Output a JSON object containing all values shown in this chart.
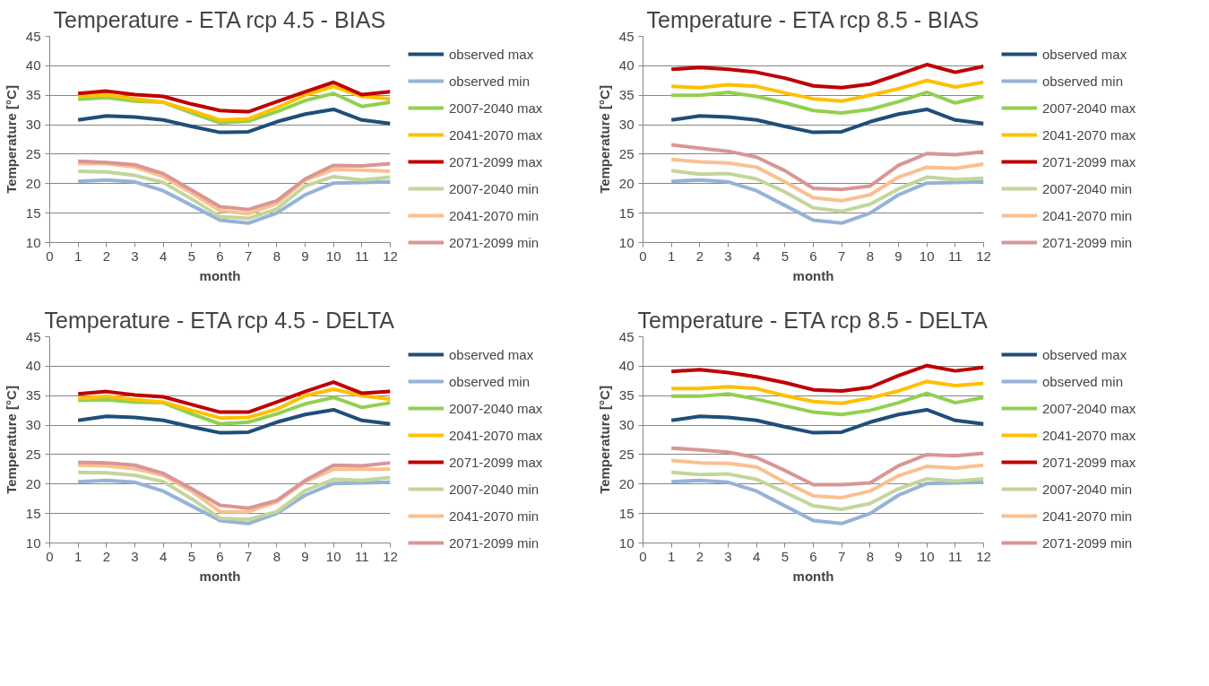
{
  "chart_data": [
    {
      "type": "line",
      "title": "Temperature - ETA rcp 4.5 - BIAS",
      "xlabel": "month",
      "ylabel": "Temperature [°C]",
      "x": [
        1,
        2,
        3,
        4,
        5,
        6,
        7,
        8,
        9,
        10,
        11,
        12
      ],
      "xlim": [
        0,
        12
      ],
      "xticks": [
        0,
        1,
        2,
        3,
        4,
        5,
        6,
        7,
        8,
        9,
        10,
        11,
        12
      ],
      "ylim": [
        10,
        45
      ],
      "yticks": [
        10,
        15,
        20,
        25,
        30,
        35,
        40,
        45
      ],
      "grid": "y",
      "legend": "right",
      "marker": "none",
      "line_style": "solid",
      "series": [
        {
          "name": "observed max",
          "color": "#1f4e79",
          "values": [
            30.8,
            31.5,
            31.3,
            30.8,
            29.7,
            28.7,
            28.8,
            30.5,
            31.8,
            32.6,
            30.8,
            30.2
          ]
        },
        {
          "name": "observed min",
          "color": "#95b3d7",
          "values": [
            20.4,
            20.6,
            20.3,
            18.8,
            16.3,
            13.8,
            13.3,
            15.0,
            18.1,
            20.1,
            20.2,
            20.3
          ]
        },
        {
          "name": "2007-2040 max",
          "color": "#92d050",
          "values": [
            34.3,
            34.6,
            34.0,
            33.8,
            32.0,
            30.3,
            30.6,
            32.2,
            34.1,
            35.3,
            33.1,
            33.8
          ]
        },
        {
          "name": "2041-2070 max",
          "color": "#ffc000",
          "values": [
            34.8,
            35.1,
            34.4,
            33.8,
            32.4,
            30.8,
            31.0,
            32.9,
            35.0,
            36.5,
            34.8,
            34.4
          ]
        },
        {
          "name": "2071-2099 max",
          "color": "#c00000",
          "values": [
            35.3,
            35.7,
            35.1,
            34.8,
            33.5,
            32.4,
            32.2,
            33.9,
            35.6,
            37.2,
            35.1,
            35.6
          ]
        },
        {
          "name": "2007-2040 min",
          "color": "#c3d69b",
          "values": [
            22.1,
            22.0,
            21.4,
            20.2,
            17.4,
            14.4,
            14.1,
            15.7,
            19.6,
            21.2,
            20.6,
            21.1
          ]
        },
        {
          "name": "2041-2070 min",
          "color": "#fac090",
          "values": [
            23.4,
            23.4,
            22.8,
            21.2,
            18.4,
            15.4,
            14.9,
            16.6,
            20.6,
            22.4,
            22.3,
            22.1
          ]
        },
        {
          "name": "2071-2099 min",
          "color": "#d99694",
          "values": [
            23.8,
            23.6,
            23.2,
            21.7,
            18.9,
            16.1,
            15.6,
            17.1,
            20.8,
            23.1,
            23.0,
            23.4
          ]
        }
      ]
    },
    {
      "type": "line",
      "title": "Temperature - ETA rcp 8.5 - BIAS",
      "xlabel": "month",
      "ylabel": "Temperature [°C]",
      "x": [
        1,
        2,
        3,
        4,
        5,
        6,
        7,
        8,
        9,
        10,
        11,
        12
      ],
      "xlim": [
        0,
        12
      ],
      "xticks": [
        0,
        1,
        2,
        3,
        4,
        5,
        6,
        7,
        8,
        9,
        10,
        11,
        12
      ],
      "ylim": [
        10,
        45
      ],
      "yticks": [
        10,
        15,
        20,
        25,
        30,
        35,
        40,
        45
      ],
      "grid": "y",
      "legend": "right",
      "marker": "none",
      "line_style": "solid",
      "series": [
        {
          "name": "observed max",
          "color": "#1f4e79",
          "values": [
            30.8,
            31.5,
            31.3,
            30.8,
            29.7,
            28.7,
            28.8,
            30.5,
            31.8,
            32.6,
            30.8,
            30.2
          ]
        },
        {
          "name": "observed min",
          "color": "#95b3d7",
          "values": [
            20.4,
            20.6,
            20.3,
            18.8,
            16.3,
            13.8,
            13.3,
            15.0,
            18.1,
            20.1,
            20.2,
            20.3
          ]
        },
        {
          "name": "2007-2040 max",
          "color": "#92d050",
          "values": [
            35.0,
            35.0,
            35.5,
            34.8,
            33.7,
            32.4,
            32.0,
            32.6,
            33.9,
            35.5,
            33.7,
            34.8
          ]
        },
        {
          "name": "2041-2070 max",
          "color": "#ffc000",
          "values": [
            36.5,
            36.3,
            36.8,
            36.5,
            35.4,
            34.4,
            34.0,
            35.0,
            36.1,
            37.5,
            36.4,
            37.2
          ]
        },
        {
          "name": "2071-2099 max",
          "color": "#c00000",
          "values": [
            39.4,
            39.7,
            39.4,
            38.9,
            37.9,
            36.6,
            36.3,
            36.9,
            38.5,
            40.2,
            38.9,
            39.9
          ]
        },
        {
          "name": "2007-2040 min",
          "color": "#c3d69b",
          "values": [
            22.2,
            21.6,
            21.7,
            20.8,
            18.6,
            15.9,
            15.3,
            16.5,
            19.1,
            21.1,
            20.7,
            20.9
          ]
        },
        {
          "name": "2041-2070 min",
          "color": "#fac090",
          "values": [
            24.1,
            23.7,
            23.5,
            22.8,
            20.3,
            17.6,
            17.1,
            18.1,
            21.1,
            22.8,
            22.6,
            23.3
          ]
        },
        {
          "name": "2071-2099 min",
          "color": "#d99694",
          "values": [
            26.6,
            26.0,
            25.5,
            24.5,
            22.2,
            19.2,
            19.0,
            19.6,
            23.1,
            25.1,
            24.9,
            25.4
          ]
        }
      ]
    },
    {
      "type": "line",
      "title": "Temperature - ETA rcp 4.5 - DELTA",
      "xlabel": "month",
      "ylabel": "Temperature [°C]",
      "x": [
        1,
        2,
        3,
        4,
        5,
        6,
        7,
        8,
        9,
        10,
        11,
        12
      ],
      "xlim": [
        0,
        12
      ],
      "xticks": [
        0,
        1,
        2,
        3,
        4,
        5,
        6,
        7,
        8,
        9,
        10,
        11,
        12
      ],
      "ylim": [
        10,
        45
      ],
      "yticks": [
        10,
        15,
        20,
        25,
        30,
        35,
        40,
        45
      ],
      "grid": "y",
      "legend": "right",
      "marker": "none",
      "line_style": "solid",
      "series": [
        {
          "name": "observed max",
          "color": "#1f4e79",
          "values": [
            30.8,
            31.5,
            31.3,
            30.8,
            29.7,
            28.7,
            28.8,
            30.5,
            31.8,
            32.6,
            30.8,
            30.2
          ]
        },
        {
          "name": "observed min",
          "color": "#95b3d7",
          "values": [
            20.4,
            20.6,
            20.3,
            18.8,
            16.3,
            13.8,
            13.3,
            15.0,
            18.1,
            20.1,
            20.2,
            20.3
          ]
        },
        {
          "name": "2007-2040 max",
          "color": "#92d050",
          "values": [
            34.2,
            34.3,
            33.9,
            33.8,
            31.9,
            30.2,
            30.5,
            31.9,
            33.6,
            34.7,
            33.0,
            33.8
          ]
        },
        {
          "name": "2041-2070 max",
          "color": "#ffc000",
          "values": [
            34.5,
            34.9,
            34.3,
            33.9,
            32.5,
            31.2,
            31.3,
            32.7,
            35.0,
            36.1,
            35.0,
            34.4
          ]
        },
        {
          "name": "2071-2099 max",
          "color": "#c00000",
          "values": [
            35.3,
            35.7,
            35.1,
            34.8,
            33.5,
            32.2,
            32.2,
            33.9,
            35.7,
            37.3,
            35.4,
            35.7
          ]
        },
        {
          "name": "2007-2040 min",
          "color": "#c3d69b",
          "values": [
            22.0,
            21.9,
            21.5,
            20.4,
            17.5,
            14.2,
            14.0,
            15.3,
            18.9,
            20.8,
            20.6,
            21.1
          ]
        },
        {
          "name": "2041-2070 min",
          "color": "#fac090",
          "values": [
            23.2,
            23.1,
            22.6,
            21.5,
            18.8,
            15.3,
            15.3,
            17.0,
            20.4,
            22.5,
            22.5,
            22.5
          ]
        },
        {
          "name": "2071-2099 min",
          "color": "#d99694",
          "values": [
            23.7,
            23.6,
            23.2,
            21.8,
            19.2,
            16.4,
            15.9,
            17.2,
            20.6,
            23.2,
            23.1,
            23.6
          ]
        }
      ]
    },
    {
      "type": "line",
      "title": "Temperature - ETA rcp 8.5 - DELTA",
      "xlabel": "month",
      "ylabel": "Temperature [°C]",
      "x": [
        1,
        2,
        3,
        4,
        5,
        6,
        7,
        8,
        9,
        10,
        11,
        12
      ],
      "xlim": [
        0,
        12
      ],
      "xticks": [
        0,
        1,
        2,
        3,
        4,
        5,
        6,
        7,
        8,
        9,
        10,
        11,
        12
      ],
      "ylim": [
        10,
        45
      ],
      "yticks": [
        10,
        15,
        20,
        25,
        30,
        35,
        40,
        45
      ],
      "grid": "y",
      "legend": "right",
      "marker": "none",
      "line_style": "solid",
      "series": [
        {
          "name": "observed max",
          "color": "#1f4e79",
          "values": [
            30.8,
            31.5,
            31.3,
            30.8,
            29.7,
            28.7,
            28.8,
            30.5,
            31.8,
            32.6,
            30.8,
            30.2
          ]
        },
        {
          "name": "observed min",
          "color": "#95b3d7",
          "values": [
            20.4,
            20.6,
            20.3,
            18.8,
            16.3,
            13.8,
            13.3,
            15.0,
            18.1,
            20.1,
            20.2,
            20.3
          ]
        },
        {
          "name": "2007-2040 max",
          "color": "#92d050",
          "values": [
            34.9,
            34.9,
            35.3,
            34.4,
            33.3,
            32.2,
            31.8,
            32.5,
            33.8,
            35.4,
            33.8,
            34.7
          ]
        },
        {
          "name": "2041-2070 max",
          "color": "#ffc000",
          "values": [
            36.2,
            36.2,
            36.5,
            36.2,
            35.0,
            34.0,
            33.7,
            34.6,
            35.8,
            37.4,
            36.7,
            37.1
          ]
        },
        {
          "name": "2071-2099 max",
          "color": "#c00000",
          "values": [
            39.1,
            39.4,
            38.9,
            38.2,
            37.2,
            36.0,
            35.8,
            36.4,
            38.4,
            40.1,
            39.2,
            39.8
          ]
        },
        {
          "name": "2007-2040 min",
          "color": "#c3d69b",
          "values": [
            22.0,
            21.6,
            21.7,
            20.8,
            18.6,
            16.3,
            15.7,
            16.7,
            19.2,
            20.9,
            20.5,
            20.9
          ]
        },
        {
          "name": "2041-2070 min",
          "color": "#fac090",
          "values": [
            24.0,
            23.6,
            23.5,
            22.9,
            20.3,
            18.0,
            17.7,
            18.8,
            21.4,
            23.0,
            22.7,
            23.2
          ]
        },
        {
          "name": "2071-2099 min",
          "color": "#d99694",
          "values": [
            26.1,
            25.8,
            25.4,
            24.5,
            22.3,
            19.9,
            19.9,
            20.2,
            23.1,
            25.0,
            24.8,
            25.2
          ]
        }
      ]
    }
  ]
}
